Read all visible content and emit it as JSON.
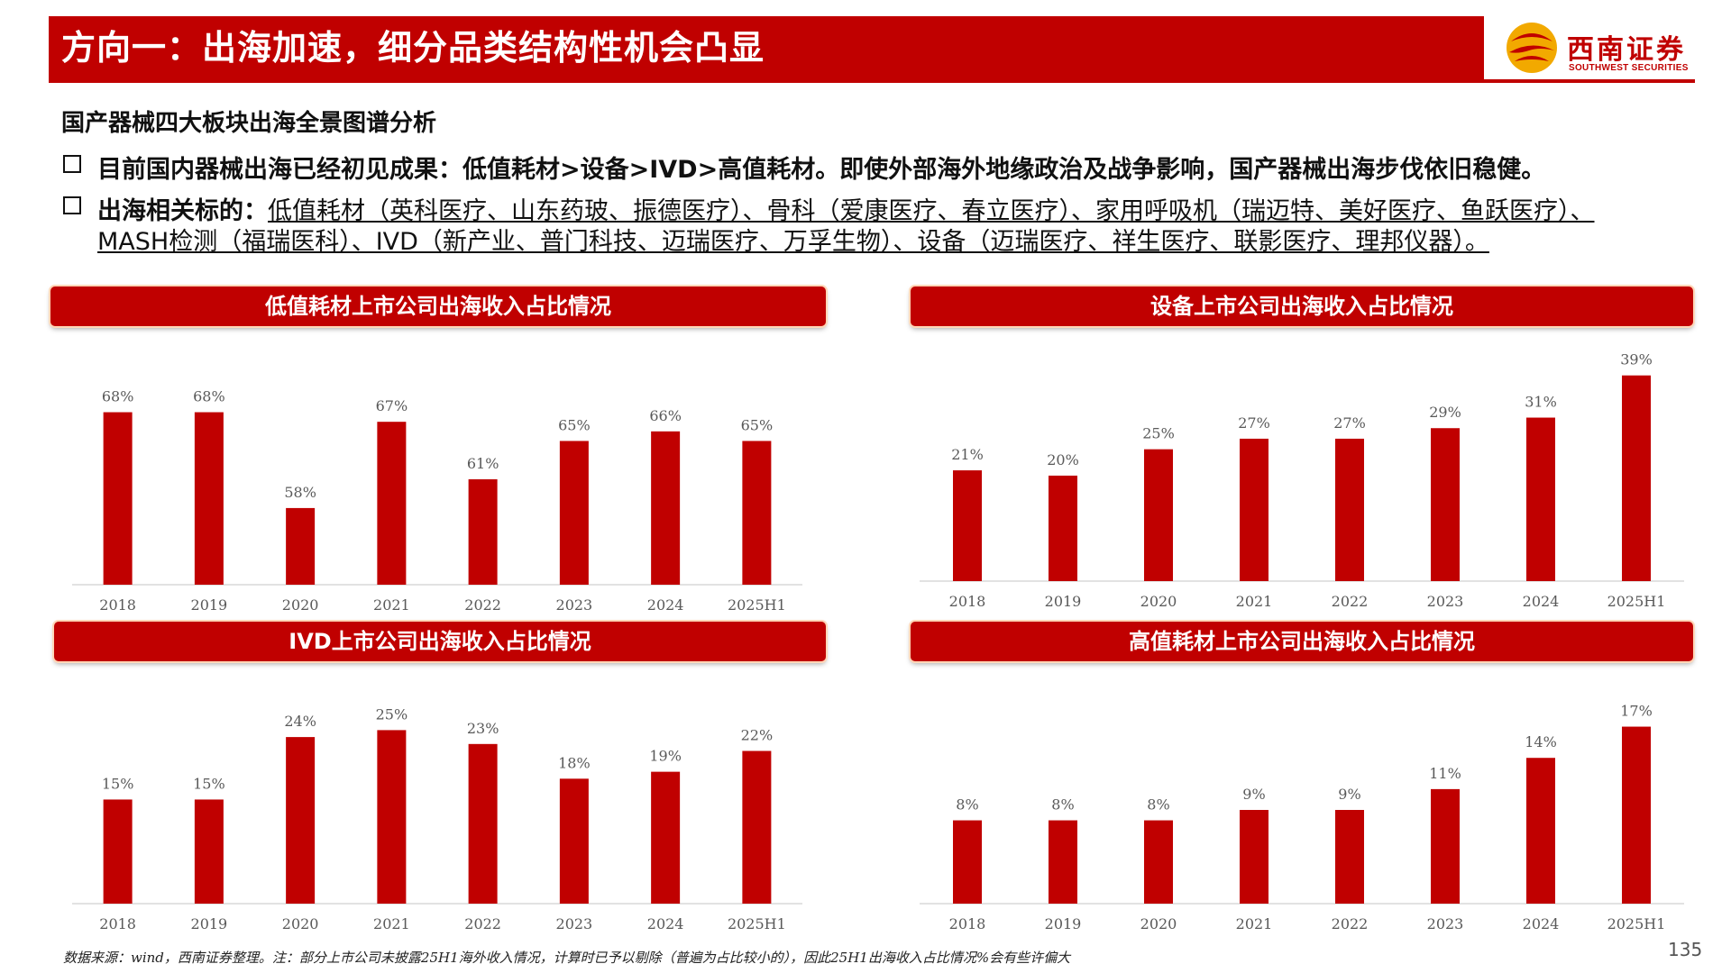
{
  "header": {
    "title": "方向一：出海加速，细分品类结构性机会凸显",
    "logo_cn": "西南证券",
    "logo_en": "SOUTHWEST SECURITIES"
  },
  "subtitle": "国产器械四大板块出海全景图谱分析",
  "bullets": {
    "first": "目前国内器械出海已经初见成果：低值耗材>设备>IVD>高值耗材。即使外部海外地缘政治及战争影响，国产器械出海步伐依旧稳健。",
    "second_lead": "出海相关标的：",
    "second_line1": "低值耗材（英科医疗、山东药玻、振德医疗）、骨科（爱康医疗、春立医疗）、家用呼吸机（瑞迈特、美好医疗、鱼跃医疗）、",
    "second_line2": "MASH检测（福瑞医科）、IVD（新产业、普门科技、迈瑞医疗、万孚生物）、设备（迈瑞医疗、祥生医疗、联影医疗、理邦仪器）。"
  },
  "chart_data": [
    {
      "type": "bar",
      "title": "低值耗材上市公司出海收入占比情况",
      "categories": [
        "2018",
        "2019",
        "2020",
        "2021",
        "2022",
        "2023",
        "2024",
        "2025H1"
      ],
      "values": [
        68,
        68,
        58,
        67,
        61,
        65,
        66,
        65
      ],
      "labels": [
        "68%",
        "68%",
        "58%",
        "67%",
        "61%",
        "65%",
        "66%",
        "65%"
      ],
      "ylim": [
        50,
        72
      ],
      "xlabel": "",
      "ylabel": "",
      "grid": false,
      "color": "#c00000"
    },
    {
      "type": "bar",
      "title": "设备上市公司出海收入占比情况",
      "categories": [
        "2018",
        "2019",
        "2020",
        "2021",
        "2022",
        "2023",
        "2024",
        "2025H1"
      ],
      "values": [
        21,
        20,
        25,
        27,
        27,
        29,
        31,
        39
      ],
      "labels": [
        "21%",
        "20%",
        "25%",
        "27%",
        "27%",
        "29%",
        "31%",
        "39%"
      ],
      "ylim": [
        0,
        41
      ],
      "xlabel": "",
      "ylabel": "",
      "grid": false,
      "color": "#c00000"
    },
    {
      "type": "bar",
      "title": "IVD上市公司出海收入占比情况",
      "categories": [
        "2018",
        "2019",
        "2020",
        "2021",
        "2022",
        "2023",
        "2024",
        "2025H1"
      ],
      "values": [
        15,
        15,
        24,
        25,
        23,
        18,
        19,
        22
      ],
      "labels": [
        "15%",
        "15%",
        "24%",
        "25%",
        "23%",
        "18%",
        "19%",
        "22%"
      ],
      "ylim": [
        0,
        27
      ],
      "xlabel": "",
      "ylabel": "",
      "grid": false,
      "color": "#c00000"
    },
    {
      "type": "bar",
      "title": "高值耗材上市公司出海收入占比情况",
      "categories": [
        "2018",
        "2019",
        "2020",
        "2021",
        "2022",
        "2023",
        "2024",
        "2025H1"
      ],
      "values": [
        8,
        8,
        8,
        9,
        9,
        11,
        14,
        17
      ],
      "labels": [
        "8%",
        "8%",
        "8%",
        "9%",
        "9%",
        "11%",
        "14%",
        "17%"
      ],
      "ylim": [
        0,
        18
      ],
      "xlabel": "",
      "ylabel": "",
      "grid": false,
      "color": "#c00000"
    }
  ],
  "footnote": "数据来源：wind，西南证券整理。注：部分上市公司未披露25H1海外收入情况，计算时已予以剔除（普遍为占比较小的），因此25H1出海收入占比情况%会有些许偏大",
  "page_number": "135"
}
